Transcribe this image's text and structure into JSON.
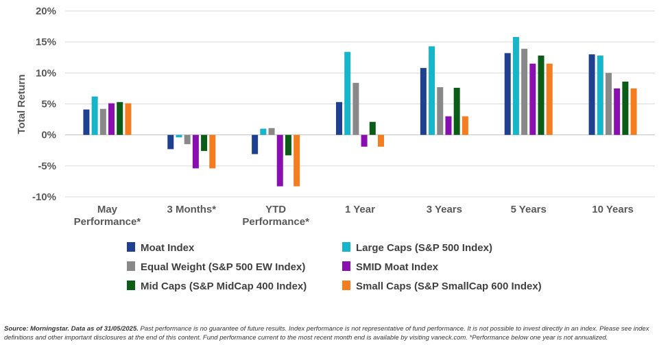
{
  "chart_data": {
    "type": "bar",
    "ylabel": "Total Return",
    "ylim": [
      -10,
      20
    ],
    "yticks": [
      20,
      15,
      10,
      5,
      0,
      -5,
      -10
    ],
    "ytick_labels": [
      "20%",
      "15%",
      "10%",
      "5%",
      "0%",
      "-5%",
      "-10%"
    ],
    "grid": true,
    "legend_position": "bottom",
    "categories": [
      [
        "May",
        "Performance*"
      ],
      [
        "3 Months*"
      ],
      [
        "YTD",
        "Performance*"
      ],
      [
        "1 Year"
      ],
      [
        "3 Years"
      ],
      [
        "5 Years"
      ],
      [
        "10 Years"
      ]
    ],
    "series": [
      {
        "name": "Moat Index",
        "color": "#1f3f8f",
        "values": [
          4.1,
          -2.3,
          -3.1,
          5.3,
          10.8,
          13.2,
          13.0
        ]
      },
      {
        "name": "Large Caps (S&P 500 Index)",
        "color": "#17b5c9",
        "values": [
          6.2,
          -0.4,
          1.0,
          13.4,
          14.3,
          15.8,
          12.8
        ]
      },
      {
        "name": "Equal Weight (S&P 500 EW Index)",
        "color": "#898989",
        "values": [
          4.2,
          -1.5,
          1.1,
          8.4,
          7.7,
          13.9,
          10.0
        ]
      },
      {
        "name": "SMID Moat Index",
        "color": "#8a0fb0",
        "values": [
          5.1,
          -5.4,
          -8.3,
          -1.9,
          3.0,
          11.5,
          7.5
        ]
      },
      {
        "name": "Mid Caps (S&P MidCap 400 Index)",
        "color": "#0b5c16",
        "values": [
          5.3,
          -2.6,
          -3.3,
          2.1,
          7.6,
          12.8,
          8.6
        ]
      },
      {
        "name": "Small Caps (S&P SmallCap 600 Index)",
        "color": "#f57c1f",
        "values": [
          5.1,
          -5.4,
          -8.3,
          -1.9,
          3.0,
          11.5,
          7.5
        ]
      }
    ]
  },
  "footnote": {
    "lead": "Source: Morningstar. Data as of 31/05/2025.",
    "text": " Past performance is no guarantee of future results. Index performance is not representative of fund performance. It is not possible to invest directly in an index. Please see index definitions and other important disclosures at the end of this content. Fund performance current to the most recent month end is available by visiting vaneck.com. *Performance below one year is not annualized."
  }
}
